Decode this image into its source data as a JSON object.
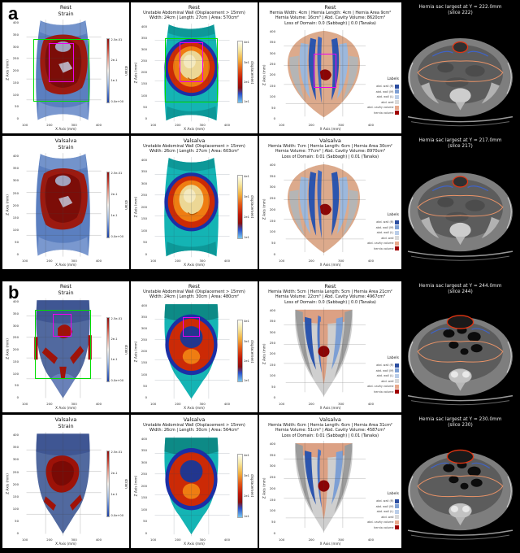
{
  "axes": {
    "y_label": "Z Axis (mm)",
    "x_label": "X Axis (mm)",
    "y_ticks": [
      "400",
      "350",
      "300",
      "250",
      "200",
      "150",
      "100",
      "50",
      "0"
    ],
    "x_ticks": [
      "100",
      "200",
      "300",
      "400"
    ]
  },
  "colorbars": {
    "strain": {
      "label": "strain",
      "ticks": [
        "2.5e-01",
        "2e-1",
        "1e-1",
        "0.0e+00"
      ]
    },
    "displacement": {
      "label": "displacement",
      "ticks": [
        "4e1",
        "3e1",
        "2e1",
        "1e1"
      ]
    }
  },
  "legend": {
    "title": "Labels",
    "items": [
      {
        "color": "#2b4da0",
        "label": "abd. wall (R)"
      },
      {
        "color": "#7d9fd4",
        "label": "abd. wall (M)"
      },
      {
        "color": "#b9cde8",
        "label": "abd. wall (L)"
      },
      {
        "color": "#d9d9d9",
        "label": "abd. wall"
      },
      {
        "color": "#e8a98c",
        "label": "abd. cavity volume"
      },
      {
        "color": "#a00000",
        "label": "hernia volume"
      }
    ]
  },
  "panels": [
    {
      "label": "a",
      "rows": [
        {
          "strain": {
            "condition": "Rest",
            "metric": "Strain"
          },
          "displacement": {
            "condition": "Rest",
            "subtitle": "Unstable Abdominal Wall (Displacement > 15mm)",
            "metrics": "Width: 24cm  |  Length: 27cm  |  Area: 570cm²"
          },
          "hernia": {
            "condition": "Rest",
            "dims": "Hernia Width: 4cm  |  Hernia Length: 4cm  |  Hernia Area 9cm²",
            "volumes": "Hernia Volume: 16cm³  |  Abd. Cavity Volume: 8620cm³",
            "lod": "Loss of Domain: 0.0 (Sabbagh)  |  0.0 (Tanaka)"
          },
          "ct": {
            "caption": "Hernia sac largest at Y = 222.0mm",
            "slice": "(slice 222)"
          }
        },
        {
          "strain": {
            "condition": "Valsalva",
            "metric": "Strain"
          },
          "displacement": {
            "condition": "Valsalva",
            "subtitle": "Unstable Abdominal Wall (Displacement > 15mm)",
            "metrics": "Width: 26cm  |  Length: 27cm  |  Area: 603cm²"
          },
          "hernia": {
            "condition": "Valsalva",
            "dims": "Hernia Width: 7cm  |  Hernia Length: 6cm  |  Hernia Area 30cm²",
            "volumes": "Hernia Volume: 77cm³  |  Abd. Cavity Volume: 8970cm³",
            "lod": "Loss of Domain: 0.01 (Sabbagh)  |  0.01 (Tanaka)"
          },
          "ct": {
            "caption": "Hernia sac largest at Y = 217.0mm",
            "slice": "(slice 217)"
          }
        }
      ]
    },
    {
      "label": "b",
      "rows": [
        {
          "strain": {
            "condition": "Rest",
            "metric": "Strain"
          },
          "displacement": {
            "condition": "Rest",
            "subtitle": "Unstable Abdominal Wall (Displacement > 15mm)",
            "metrics": "Width: 24cm  |  Length: 30cm  |  Area: 480cm²"
          },
          "hernia": {
            "condition": "Rest",
            "dims": "Hernia Width: 5cm  |  Hernia Length: 5cm  |  Hernia Area 21cm²",
            "volumes": "Hernia Volume: 22cm³  |  Abd. Cavity Volume: 4967cm³",
            "lod": "Loss of Domain: 0.0 (Sabbagh)  |  0.0 (Tanaka)"
          },
          "ct": {
            "caption": "Hernia sac largest at Y = 244.0mm",
            "slice": "(slice 244)"
          }
        },
        {
          "strain": {
            "condition": "Valsalva",
            "metric": "Strain"
          },
          "displacement": {
            "condition": "Valsalva",
            "subtitle": "Unstable Abdominal Wall (Displacement > 15mm)",
            "metrics": "Width: 26cm  |  Length: 30cm  |  Area: 564cm²"
          },
          "hernia": {
            "condition": "Valsalva",
            "dims": "Hernia Width: 6cm  |  Hernia Length: 6cm  |  Hernia Area 31cm²",
            "volumes": "Hernia Volume: 51cm³  |  Abd. Cavity Volume: 4587cm³",
            "lod": "Loss of Domain: 0.01 (Sabbagh)  |  0.01 (Tanaka)"
          },
          "ct": {
            "caption": "Hernia sac largest at Y = 230.0mm",
            "slice": "(slice 230)"
          }
        }
      ]
    }
  ]
}
